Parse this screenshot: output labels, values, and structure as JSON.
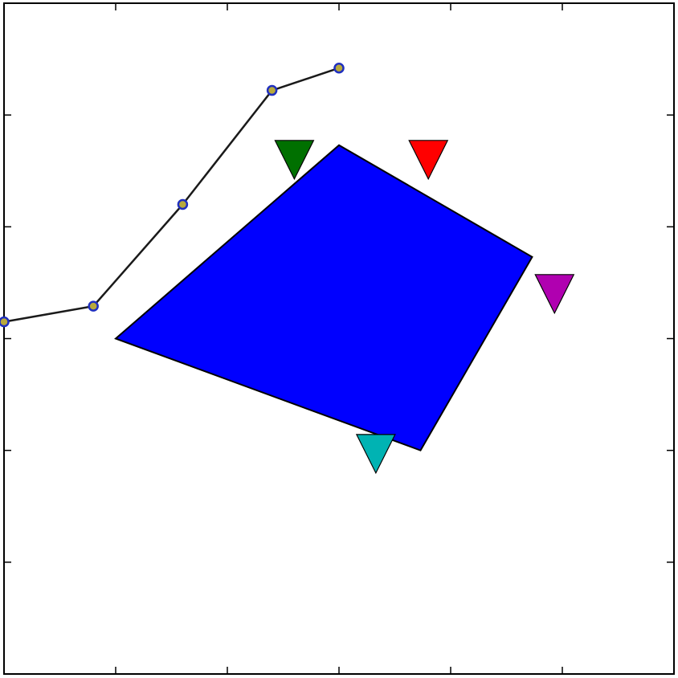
{
  "chart_data": {
    "type": "scatter",
    "title": "",
    "xlabel": "",
    "ylabel": "",
    "xlim": [
      0,
      6
    ],
    "ylim": [
      0,
      6
    ],
    "xticks": [
      1,
      2,
      3,
      4,
      5
    ],
    "yticks": [
      1,
      2,
      3,
      4,
      5
    ],
    "grid": false,
    "legend": "none",
    "line_series": {
      "x": [
        0.0,
        0.8,
        1.6,
        2.4,
        3.0
      ],
      "y": [
        3.15,
        3.29,
        4.2,
        5.22,
        5.42
      ],
      "line_color": "#1a1a1a",
      "marker_face": "#b8a93c",
      "marker_edge": "#1f2fbf"
    },
    "polygon": {
      "color": "#0000ff",
      "edge_color": "#000000",
      "vertices": [
        [
          1.0,
          3.0
        ],
        [
          3.0,
          4.73
        ],
        [
          4.73,
          3.73
        ],
        [
          3.73,
          2.0
        ]
      ]
    },
    "markers": [
      {
        "name": "green",
        "color": "#007000",
        "x": 2.6,
        "y": 4.6
      },
      {
        "name": "red",
        "color": "#ff0000",
        "x": 3.8,
        "y": 4.6
      },
      {
        "name": "magenta",
        "color": "#b000b0",
        "x": 4.93,
        "y": 3.4
      },
      {
        "name": "cyan",
        "color": "#00b3b3",
        "x": 3.33,
        "y": 1.97
      }
    ]
  }
}
